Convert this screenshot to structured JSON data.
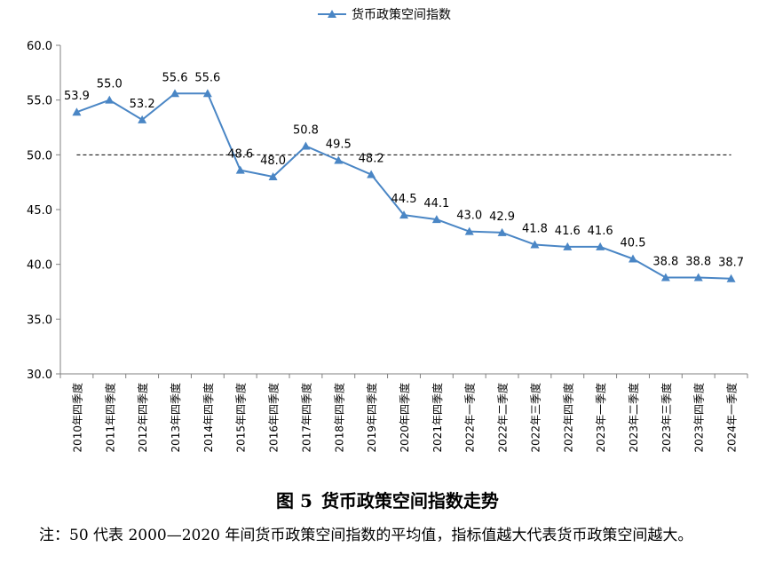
{
  "chart_data": {
    "type": "line",
    "title": "",
    "xlabel": "",
    "ylabel": "",
    "ylim": [
      30,
      60
    ],
    "yticks": [
      "30.0",
      "35.0",
      "40.0",
      "45.0",
      "50.0",
      "55.0",
      "60.0"
    ],
    "reference_line": 50,
    "legend_position": "top-center",
    "grid": false,
    "line_color": "#4A86C5",
    "reference_line_color": "#000000",
    "categories": [
      "2010年四季度",
      "2011年四季度",
      "2012年四季度",
      "2013年四季度",
      "2014年四季度",
      "2015年四季度",
      "2016年四季度",
      "2017年四季度",
      "2018年四季度",
      "2019年四季度",
      "2020年四季度",
      "2021年四季度",
      "2022年一季度",
      "2022年二季度",
      "2022年三季度",
      "2022年四季度",
      "2023年一季度",
      "2023年二季度",
      "2023年三季度",
      "2023年四季度",
      "2024年一季度"
    ],
    "series": [
      {
        "name": "货币政策空间指数",
        "values": [
          53.9,
          55.0,
          53.2,
          55.6,
          55.6,
          48.6,
          48.0,
          50.8,
          49.5,
          48.2,
          44.5,
          44.1,
          43.0,
          42.9,
          41.8,
          41.6,
          41.6,
          40.5,
          38.8,
          38.8,
          38.7
        ],
        "labels": [
          "53.9",
          "55.0",
          "53.2",
          "55.6",
          "55.6",
          "48.6",
          "48.0",
          "50.8",
          "49.5",
          "48.2",
          "44.5",
          "44.1",
          "43.0",
          "42.9",
          "41.8",
          "41.6",
          "41.6",
          "40.5",
          "38.8",
          "38.8",
          "38.7"
        ]
      }
    ]
  },
  "figure": {
    "number": "图 5",
    "title": "货币政策空间指数走势",
    "note": "注：50 代表 2000—2020 年间货币政策空间指数的平均值，指标值越大代表货币政策空间越大。"
  }
}
